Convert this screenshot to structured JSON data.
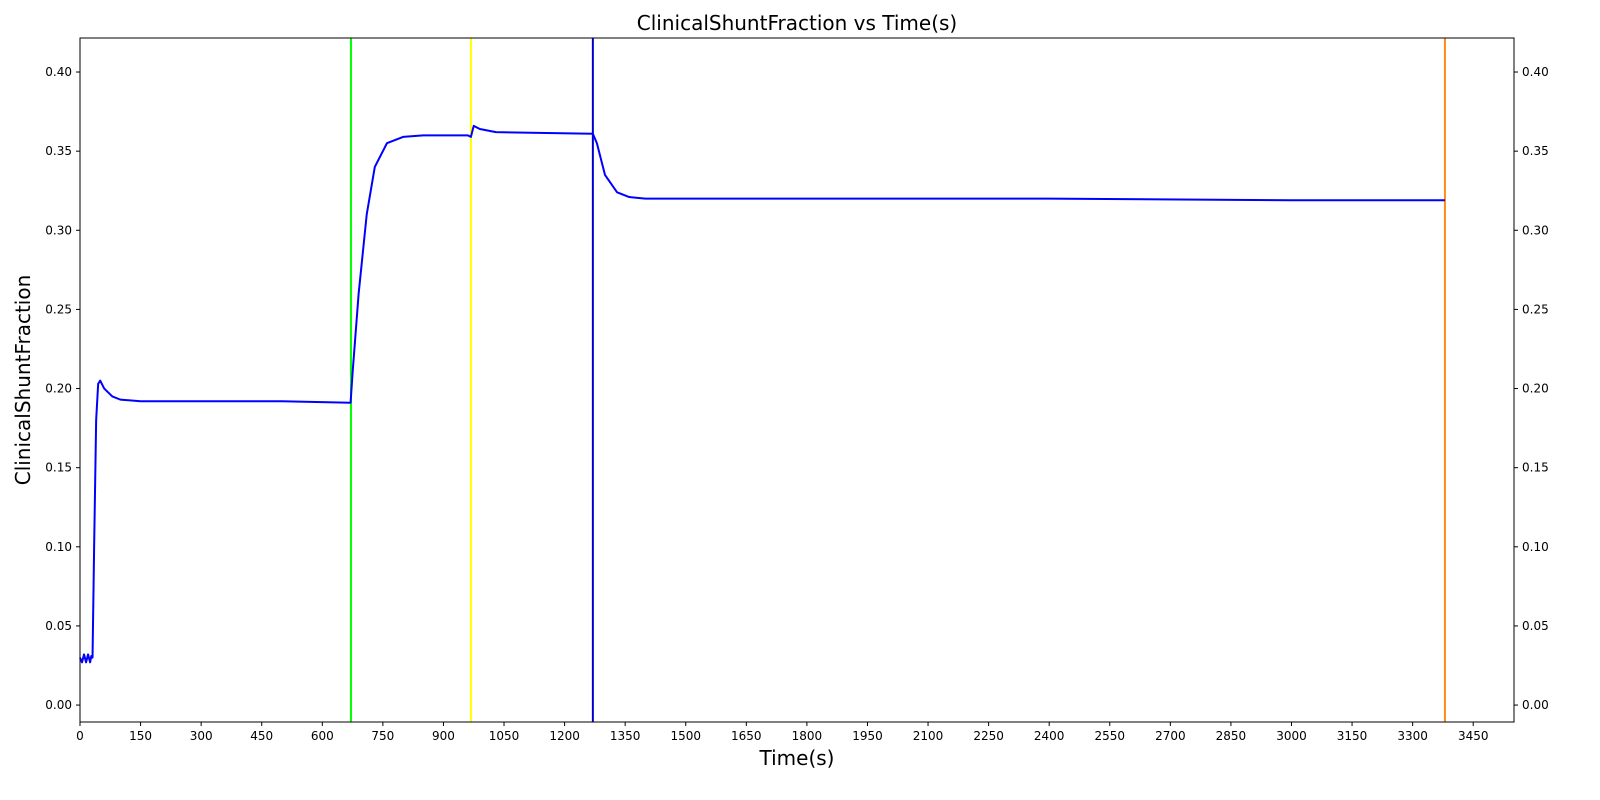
{
  "chart_data": {
    "type": "line",
    "title": "ClinicalShuntFraction vs Time(s)",
    "x_label": "Time(s)",
    "y_label": "ClinicalShuntFraction",
    "x": [
      0,
      5,
      10,
      15,
      20,
      25,
      28,
      31,
      35,
      40,
      45,
      50,
      60,
      80,
      100,
      150,
      300,
      500,
      670,
      675,
      690,
      710,
      730,
      760,
      800,
      850,
      960,
      968,
      975,
      990,
      1030,
      1270,
      1280,
      1300,
      1330,
      1360,
      1400,
      2000,
      2400,
      3000,
      3380
    ],
    "series": [
      {
        "name": "ClinicalShuntFraction",
        "color": "#0000ff",
        "values": [
          0.03,
          0.027,
          0.032,
          0.027,
          0.032,
          0.027,
          0.031,
          0.03,
          0.1,
          0.18,
          0.203,
          0.205,
          0.2,
          0.195,
          0.193,
          0.192,
          0.192,
          0.192,
          0.191,
          0.21,
          0.26,
          0.31,
          0.34,
          0.355,
          0.359,
          0.36,
          0.36,
          0.359,
          0.366,
          0.364,
          0.362,
          0.361,
          0.355,
          0.335,
          0.324,
          0.321,
          0.32,
          0.32,
          0.32,
          0.319,
          0.319
        ]
      }
    ],
    "vlines": [
      {
        "x": 671,
        "color": "#00ff00"
      },
      {
        "x": 968,
        "color": "#ffff00"
      },
      {
        "x": 1270,
        "color": "#0000cc"
      },
      {
        "x": 3380,
        "color": "#ff8c1a"
      }
    ],
    "xlim": [
      0,
      3551
    ],
    "ylim": [
      -0.0107,
      0.4215
    ],
    "xticks": [
      0,
      150,
      300,
      450,
      600,
      750,
      900,
      1050,
      1200,
      1350,
      1500,
      1650,
      1800,
      1950,
      2100,
      2250,
      2400,
      2550,
      2700,
      2850,
      3000,
      3150,
      3300,
      3450
    ],
    "yticks": [
      {
        "value": 0,
        "label": "0.00"
      },
      {
        "value": 0.05,
        "label": "0.05"
      },
      {
        "value": 0.1,
        "label": "0.10"
      },
      {
        "value": 0.15,
        "label": "0.15"
      },
      {
        "value": 0.2,
        "label": "0.20"
      },
      {
        "value": 0.25,
        "label": "0.25"
      },
      {
        "value": 0.3,
        "label": "0.30"
      },
      {
        "value": 0.35,
        "label": "0.35"
      },
      {
        "value": 0.4,
        "label": "0.40"
      }
    ],
    "right_axis_mirror": true,
    "grid": false
  }
}
